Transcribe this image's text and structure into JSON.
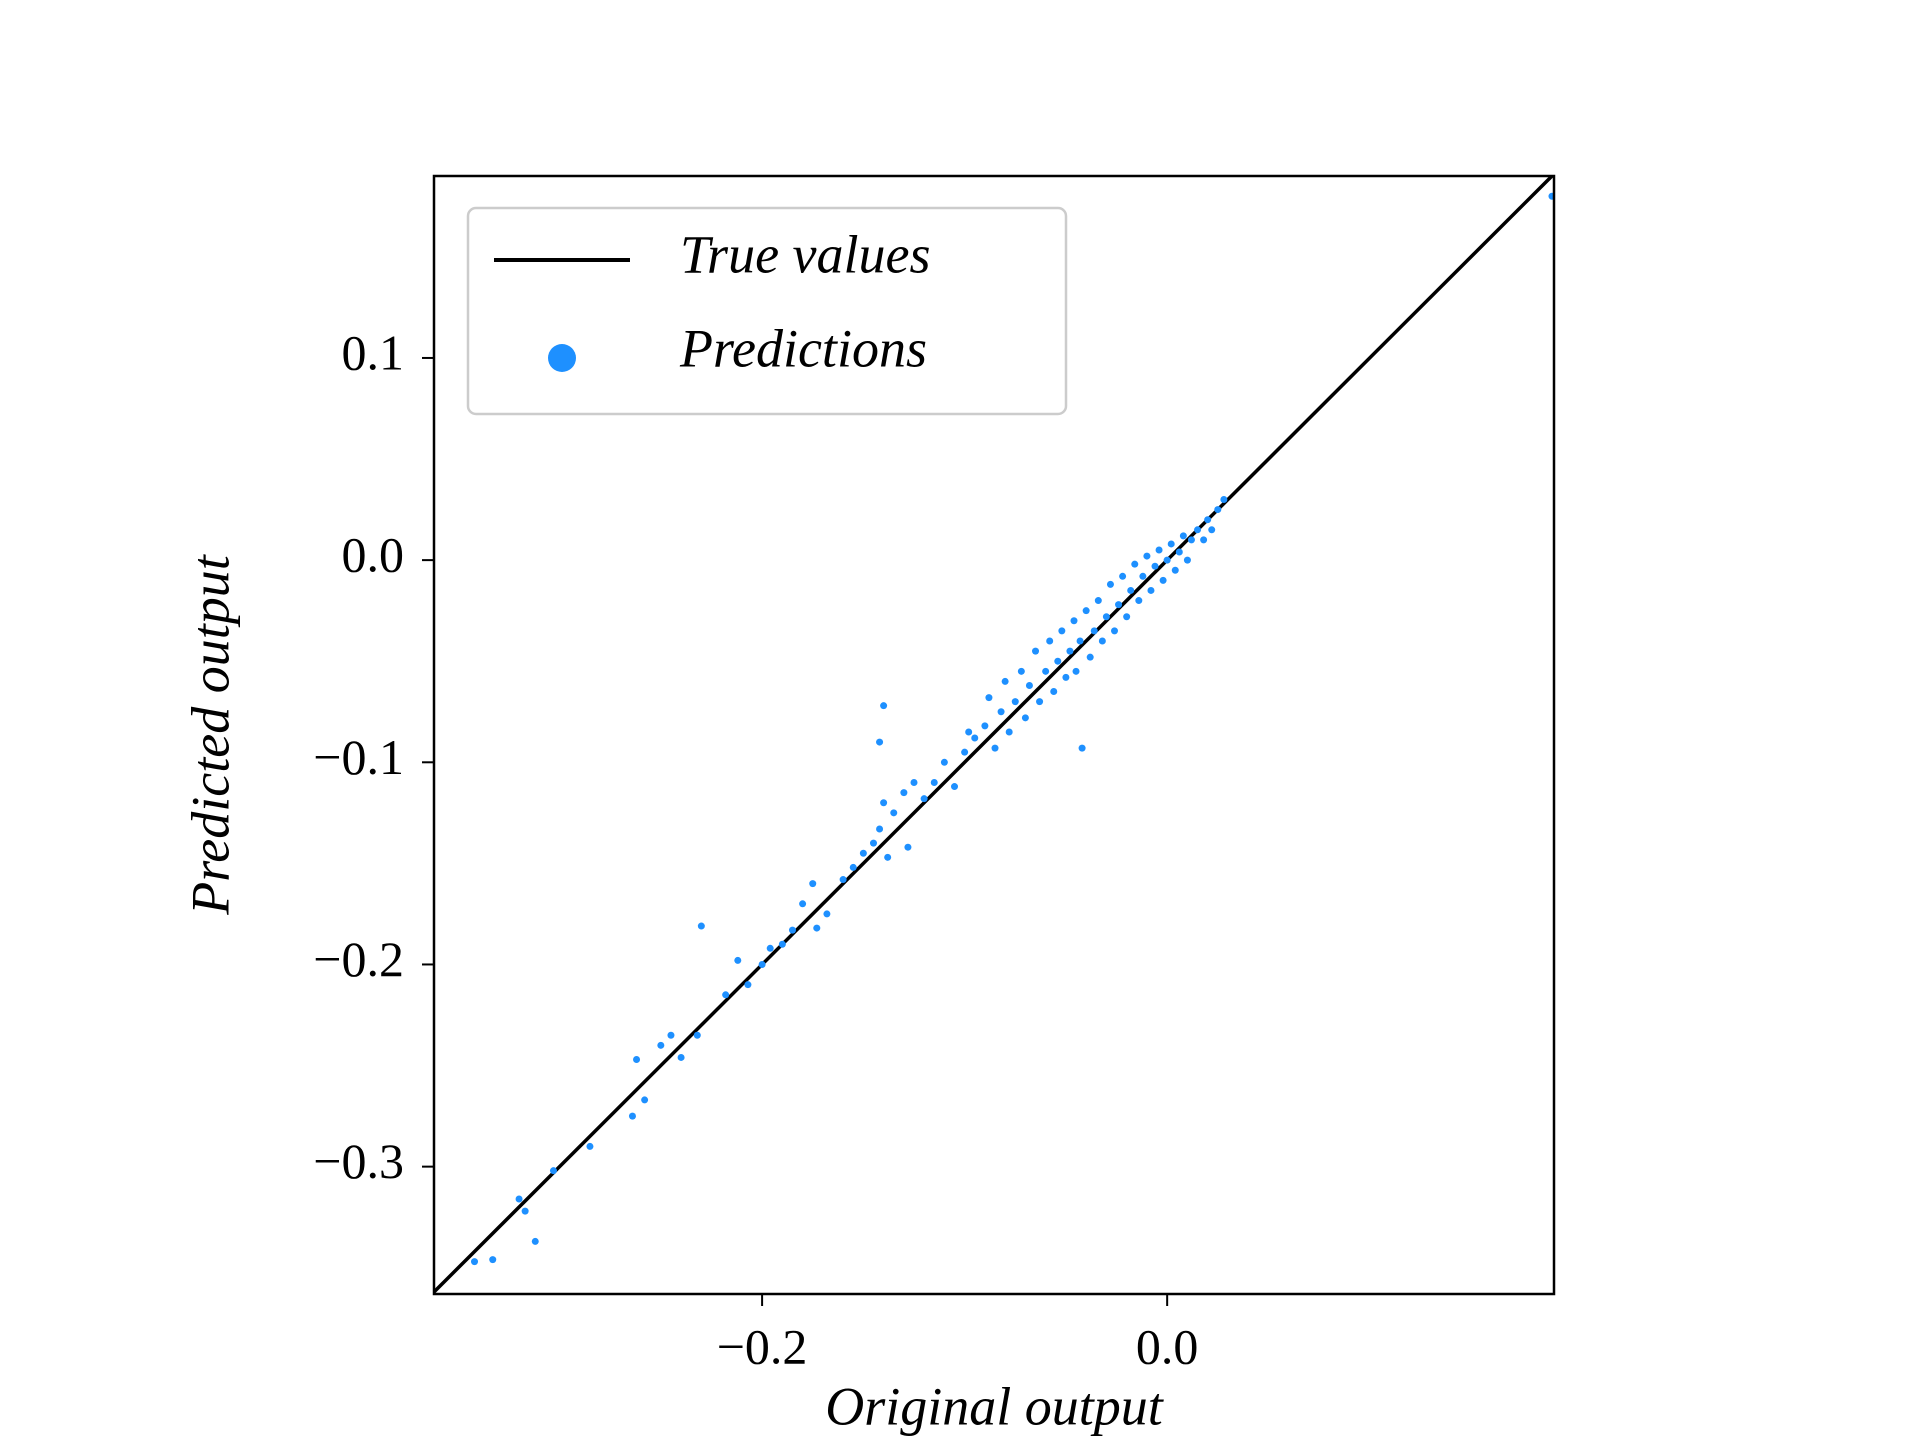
{
  "chart_data": {
    "type": "scatter",
    "xlabel": "Original output",
    "ylabel": "Predicted output",
    "xlim": [
      -0.362,
      0.191
    ],
    "ylim": [
      -0.363,
      0.19
    ],
    "xticks": [
      {
        "value": -0.2,
        "label": "−0.2"
      },
      {
        "value": 0.0,
        "label": "0.0"
      }
    ],
    "yticks": [
      {
        "value": -0.3,
        "label": "−0.3"
      },
      {
        "value": -0.2,
        "label": "−0.2"
      },
      {
        "value": -0.1,
        "label": "−0.1"
      },
      {
        "value": 0.0,
        "label": "0.0"
      },
      {
        "value": 0.1,
        "label": "0.1"
      }
    ],
    "legend": "upper left",
    "series": [
      {
        "name": "True values",
        "type": "line",
        "color": "#000000",
        "x": [
          -0.362,
          0.191
        ],
        "values": [
          -0.362,
          0.191
        ]
      },
      {
        "name": "Predictions",
        "type": "scatter",
        "color": "#1e90ff",
        "x": [
          -0.342,
          -0.333,
          -0.32,
          -0.317,
          -0.312,
          -0.303,
          -0.285,
          -0.264,
          -0.262,
          -0.258,
          -0.25,
          -0.245,
          -0.24,
          -0.232,
          -0.23,
          -0.218,
          -0.212,
          -0.207,
          -0.2,
          -0.196,
          -0.19,
          -0.185,
          -0.18,
          -0.175,
          -0.173,
          -0.168,
          -0.16,
          -0.155,
          -0.15,
          -0.145,
          -0.142,
          -0.14,
          -0.138,
          -0.135,
          -0.13,
          -0.128,
          -0.125,
          -0.12,
          -0.115,
          -0.11,
          -0.105,
          -0.1,
          -0.098,
          -0.142,
          -0.14,
          -0.095,
          -0.09,
          -0.088,
          -0.085,
          -0.082,
          -0.08,
          -0.078,
          -0.075,
          -0.072,
          -0.07,
          -0.068,
          -0.065,
          -0.063,
          -0.06,
          -0.058,
          -0.056,
          -0.054,
          -0.052,
          -0.05,
          -0.048,
          -0.046,
          -0.045,
          -0.043,
          -0.042,
          -0.04,
          -0.038,
          -0.036,
          -0.034,
          -0.032,
          -0.03,
          -0.028,
          -0.026,
          -0.024,
          -0.022,
          -0.02,
          -0.018,
          -0.016,
          -0.014,
          -0.012,
          -0.01,
          -0.008,
          -0.006,
          -0.004,
          -0.002,
          0.0,
          0.002,
          0.004,
          0.006,
          0.008,
          0.01,
          0.012,
          0.015,
          0.018,
          0.02,
          0.022,
          0.025,
          0.028,
          0.19
        ],
        "values": [
          -0.347,
          -0.346,
          -0.316,
          -0.322,
          -0.337,
          -0.302,
          -0.29,
          -0.275,
          -0.247,
          -0.267,
          -0.24,
          -0.235,
          -0.246,
          -0.235,
          -0.181,
          -0.215,
          -0.198,
          -0.21,
          -0.2,
          -0.192,
          -0.19,
          -0.183,
          -0.17,
          -0.16,
          -0.182,
          -0.175,
          -0.158,
          -0.152,
          -0.145,
          -0.14,
          -0.133,
          -0.12,
          -0.147,
          -0.125,
          -0.115,
          -0.142,
          -0.11,
          -0.118,
          -0.11,
          -0.1,
          -0.112,
          -0.095,
          -0.085,
          -0.09,
          -0.072,
          -0.088,
          -0.082,
          -0.068,
          -0.093,
          -0.075,
          -0.06,
          -0.085,
          -0.07,
          -0.055,
          -0.078,
          -0.062,
          -0.045,
          -0.07,
          -0.055,
          -0.04,
          -0.065,
          -0.05,
          -0.035,
          -0.058,
          -0.045,
          -0.03,
          -0.055,
          -0.04,
          -0.093,
          -0.025,
          -0.048,
          -0.035,
          -0.02,
          -0.04,
          -0.028,
          -0.012,
          -0.035,
          -0.022,
          -0.008,
          -0.028,
          -0.015,
          -0.002,
          -0.02,
          -0.008,
          0.002,
          -0.015,
          -0.003,
          0.005,
          -0.01,
          0.0,
          0.008,
          -0.005,
          0.004,
          0.012,
          0.0,
          0.01,
          0.015,
          0.01,
          0.02,
          0.015,
          0.025,
          0.03,
          0.18
        ]
      }
    ]
  }
}
